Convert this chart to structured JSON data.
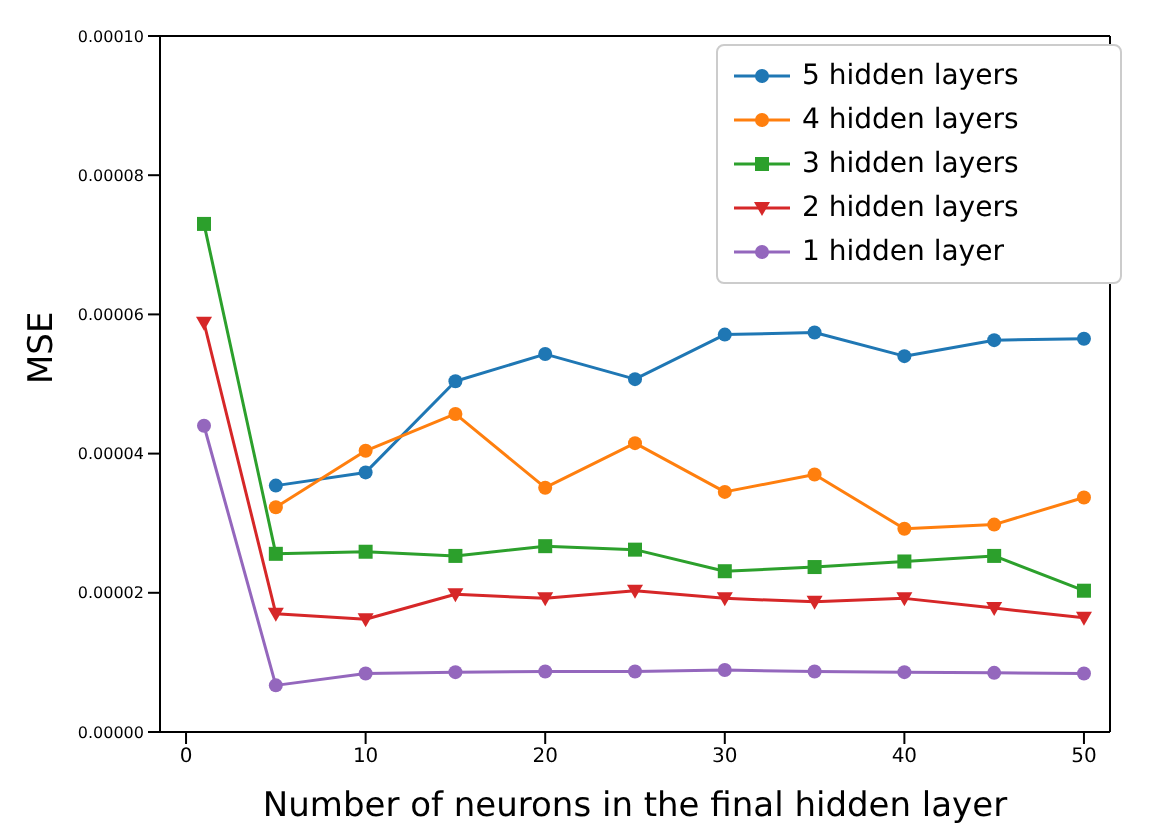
{
  "chart_data": {
    "type": "line",
    "xlabel": "Number of neurons in the final hidden layer",
    "ylabel": "MSE",
    "x": [
      1,
      5,
      10,
      15,
      20,
      25,
      30,
      35,
      40,
      45,
      50
    ],
    "series": [
      {
        "name": "5 hidden layers",
        "color": "#1f77b4",
        "marker": "circle",
        "values": [
          null,
          3.54e-05,
          3.73e-05,
          5.04e-05,
          5.43e-05,
          5.07e-05,
          5.71e-05,
          5.74e-05,
          5.4e-05,
          5.63e-05,
          5.65e-05
        ]
      },
      {
        "name": "4 hidden layers",
        "color": "#ff7f0e",
        "marker": "circle",
        "values": [
          null,
          3.23e-05,
          4.04e-05,
          4.57e-05,
          3.51e-05,
          4.15e-05,
          3.45e-05,
          3.7e-05,
          2.92e-05,
          2.98e-05,
          3.37e-05
        ]
      },
      {
        "name": "3 hidden layers",
        "color": "#2ca02c",
        "marker": "square",
        "values": [
          7.3e-05,
          2.56e-05,
          2.59e-05,
          2.53e-05,
          2.67e-05,
          2.62e-05,
          2.31e-05,
          2.37e-05,
          2.45e-05,
          2.53e-05,
          2.03e-05
        ]
      },
      {
        "name": "2 hidden layers",
        "color": "#d62728",
        "marker": "triangle",
        "values": [
          5.88e-05,
          1.7e-05,
          1.62e-05,
          1.98e-05,
          1.92e-05,
          2.03e-05,
          1.92e-05,
          1.87e-05,
          1.92e-05,
          1.78e-05,
          1.64e-05
        ]
      },
      {
        "name": "1 hidden layer",
        "color": "#9467bd",
        "marker": "circle",
        "values": [
          4.4e-05,
          6.7e-06,
          8.4e-06,
          8.6e-06,
          8.7e-06,
          8.7e-06,
          8.9e-06,
          8.7e-06,
          8.6e-06,
          8.5e-06,
          8.4e-06
        ]
      }
    ],
    "xlim": [
      -1.45,
      51.45
    ],
    "xticks": [
      0,
      10,
      20,
      30,
      40,
      50
    ],
    "ylim": [
      0,
      0.0001
    ],
    "yticks": [
      {
        "value": 0,
        "label": "0.00000"
      },
      {
        "value": 2e-05,
        "label": "0.00002"
      },
      {
        "value": 4e-05,
        "label": "0.00004"
      },
      {
        "value": 6e-05,
        "label": "0.00006"
      },
      {
        "value": 8e-05,
        "label": "0.00008"
      },
      {
        "value": 0.0001,
        "label": "0.00010"
      }
    ],
    "legend": "top right",
    "grid": false,
    "line_style": "solid"
  }
}
